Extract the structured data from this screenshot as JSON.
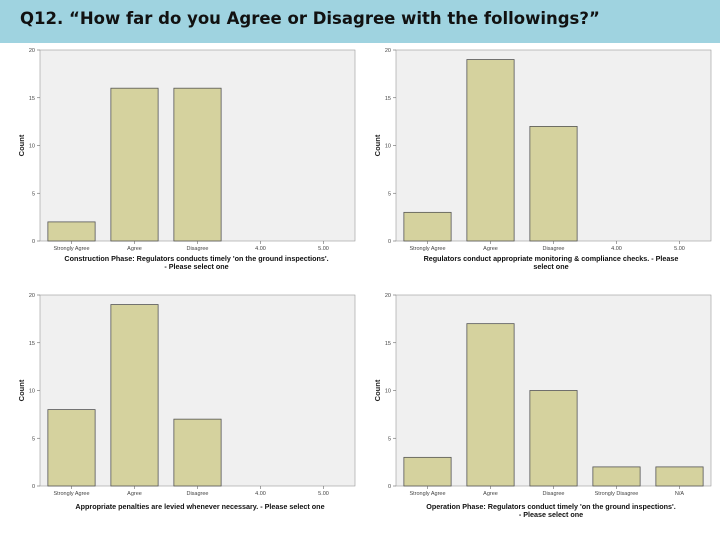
{
  "slide": {
    "title": "Q12.  “How far do you Agree or Disagree with the followings?”"
  },
  "colors": {
    "plot_bg": "#f0f0f0",
    "bar_fill": "#d5d29e",
    "bar_stroke": "#555555",
    "title_band": "#9fd3e0"
  },
  "chart_data": [
    {
      "type": "bar",
      "title": "",
      "xlabel": "Construction Phase: Regulators conducts timely 'on the ground inspections'.  - Please select one",
      "ylabel": "Count",
      "ylim": [
        0,
        20
      ],
      "yticks": [
        "0",
        "5",
        "10",
        "15",
        "20"
      ],
      "categories": [
        "Strongly Agree",
        "Agree",
        "Disagree",
        "4.00",
        "5.00"
      ],
      "values": [
        2,
        16,
        16,
        0,
        0
      ]
    },
    {
      "type": "bar",
      "title": "",
      "xlabel": "Regulators conduct appropriate monitoring & compliance checks.  - Please select one",
      "ylabel": "Count",
      "ylim": [
        0,
        20
      ],
      "yticks": [
        "0",
        "5",
        "10",
        "15",
        "20"
      ],
      "categories": [
        "Strongly Agree",
        "Agree",
        "Disagree",
        "4.00",
        "5.00"
      ],
      "values": [
        3,
        19,
        12,
        0,
        0
      ]
    },
    {
      "type": "bar",
      "title": "",
      "xlabel": "Appropriate penalties are levied whenever necessary.  - Please select one",
      "ylabel": "Count",
      "ylim": [
        0,
        20
      ],
      "yticks": [
        "0",
        "5",
        "10",
        "15",
        "20"
      ],
      "categories": [
        "Strongly Agree",
        "Agree",
        "Disagree",
        "4.00",
        "5.00"
      ],
      "values": [
        8,
        19,
        7,
        0,
        0
      ]
    },
    {
      "type": "bar",
      "title": "",
      "xlabel": "Operation Phase: Regulators conduct timely 'on the ground inspections'.  - Please select one",
      "ylabel": "Count",
      "ylim": [
        0,
        20
      ],
      "yticks": [
        "0",
        "5",
        "10",
        "15",
        "20"
      ],
      "categories": [
        "Strongly Agree",
        "Agree",
        "Disagree",
        "Strongly Disagree",
        "N/A"
      ],
      "values": [
        3,
        17,
        10,
        2,
        2
      ]
    }
  ]
}
